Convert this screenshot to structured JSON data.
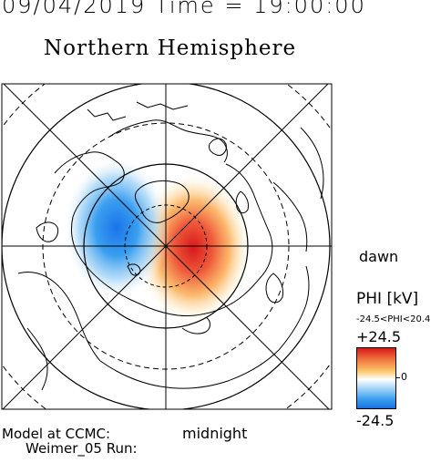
{
  "header": {
    "datetime": "09/04/2019 Time = 19:00:00",
    "title": "Northern Hemisphere"
  },
  "map": {
    "dawn_label": "dawn",
    "midnight_label": "midnight",
    "potential_colors": {
      "positive": "#d7191c",
      "negative": "#1a6fe0",
      "zero": "#ffffff"
    }
  },
  "colorbar": {
    "label": "PHI [kV]",
    "range_text": "-24.5<PHI<20.4",
    "max": "+24.5",
    "zero": "0",
    "min": "-24.5"
  },
  "credits": {
    "line1": "Model at CCMC:",
    "line2": "Weimer_05 Run:"
  }
}
